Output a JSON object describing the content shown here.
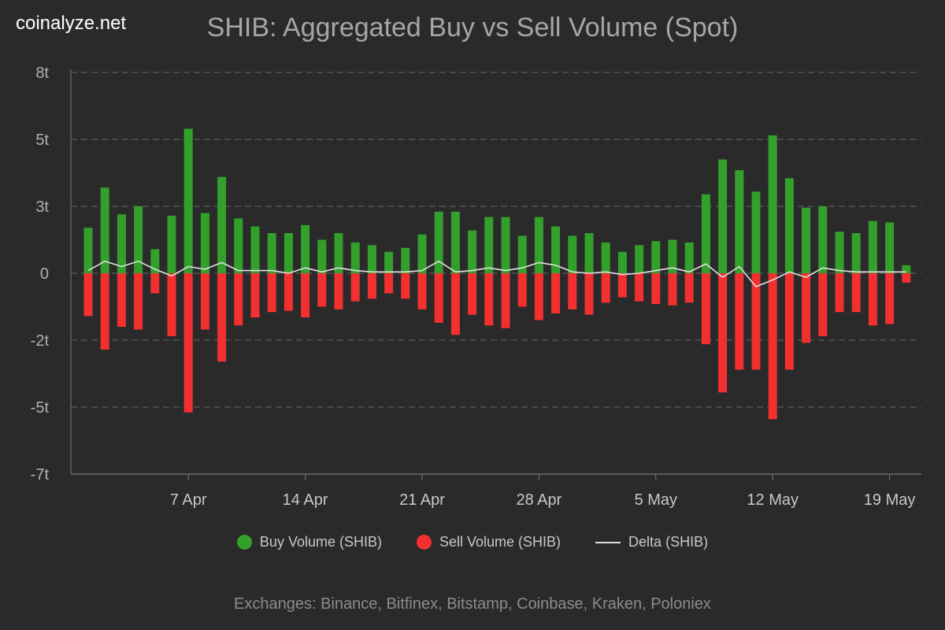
{
  "brand": "coinalyze.net",
  "footer": "Exchanges: Binance, Bitfinex, Bitstamp, Coinbase, Kraken, Poloniex",
  "legend": {
    "buy": "Buy Volume (SHIB)",
    "sell": "Sell Volume (SHIB)",
    "delta": "Delta (SHIB)"
  },
  "colors": {
    "background": "#2a2a2a",
    "buy": "#33a02c",
    "sell": "#f23030",
    "delta": "#e0e0e0",
    "grid": "#5a5a5a"
  },
  "chart_data": {
    "type": "bar",
    "title": "SHIB: Aggregated Buy vs Sell Volume (Spot)",
    "xlabel": "",
    "ylabel": "",
    "grid": true,
    "legend_position": "bottom",
    "y_ticks": [
      "8t",
      "5t",
      "3t",
      "0",
      "-2t",
      "-5t",
      "-7t"
    ],
    "ylim": [
      -7.5,
      7.5
    ],
    "x_ticks": [
      "7 Apr",
      "14 Apr",
      "21 Apr",
      "28 Apr",
      "5 May",
      "12 May",
      "19 May"
    ],
    "categories": [
      "1 Apr",
      "2 Apr",
      "3 Apr",
      "4 Apr",
      "5 Apr",
      "6 Apr",
      "7 Apr",
      "8 Apr",
      "9 Apr",
      "10 Apr",
      "11 Apr",
      "12 Apr",
      "13 Apr",
      "14 Apr",
      "15 Apr",
      "16 Apr",
      "17 Apr",
      "18 Apr",
      "19 Apr",
      "20 Apr",
      "21 Apr",
      "22 Apr",
      "23 Apr",
      "24 Apr",
      "25 Apr",
      "26 Apr",
      "27 Apr",
      "28 Apr",
      "29 Apr",
      "30 Apr",
      "1 May",
      "2 May",
      "3 May",
      "4 May",
      "5 May",
      "6 May",
      "7 May",
      "8 May",
      "9 May",
      "10 May",
      "11 May",
      "12 May",
      "13 May",
      "14 May",
      "15 May",
      "16 May",
      "17 May",
      "18 May",
      "19 May",
      "20 May"
    ],
    "series": [
      {
        "name": "Buy Volume (SHIB)",
        "type": "bar",
        "values": [
          1.7,
          3.2,
          2.2,
          2.5,
          0.9,
          2.15,
          5.4,
          2.25,
          3.6,
          2.05,
          1.75,
          1.5,
          1.5,
          1.8,
          1.25,
          1.5,
          1.15,
          1.05,
          0.8,
          0.95,
          1.45,
          2.3,
          2.3,
          1.6,
          2.1,
          2.1,
          1.4,
          2.1,
          1.75,
          1.4,
          1.5,
          1.15,
          0.8,
          1.05,
          1.2,
          1.25,
          1.15,
          2.95,
          4.25,
          3.85,
          3.05,
          5.15,
          3.55,
          2.45,
          2.5,
          1.55,
          1.5,
          1.95,
          1.9,
          0.3
        ]
      },
      {
        "name": "Sell Volume (SHIB)",
        "type": "bar",
        "values": [
          -1.6,
          -2.85,
          -2.0,
          -2.1,
          -0.75,
          -2.35,
          -5.2,
          -2.1,
          -3.3,
          -1.95,
          -1.65,
          -1.45,
          -1.4,
          -1.65,
          -1.25,
          -1.35,
          -1.05,
          -0.95,
          -0.75,
          -0.95,
          -1.35,
          -1.85,
          -2.3,
          -1.55,
          -1.95,
          -2.05,
          -1.25,
          -1.75,
          -1.5,
          -1.35,
          -1.55,
          -1.1,
          -0.9,
          -1.05,
          -1.15,
          -1.2,
          -1.1,
          -2.65,
          -4.45,
          -3.6,
          -3.6,
          -5.45,
          -3.6,
          -2.6,
          -2.35,
          -1.45,
          -1.45,
          -1.95,
          -1.9,
          -0.35
        ]
      },
      {
        "name": "Delta (SHIB)",
        "type": "line",
        "values": [
          0.1,
          0.45,
          0.25,
          0.45,
          0.15,
          -0.1,
          0.25,
          0.15,
          0.4,
          0.1,
          0.1,
          0.1,
          0.0,
          0.2,
          0.05,
          0.2,
          0.1,
          0.05,
          0.05,
          0.05,
          0.1,
          0.45,
          0.05,
          0.1,
          0.2,
          0.1,
          0.2,
          0.4,
          0.3,
          0.05,
          0.0,
          0.05,
          -0.05,
          0.0,
          0.1,
          0.2,
          0.05,
          0.35,
          -0.15,
          0.25,
          -0.5,
          -0.25,
          0.05,
          -0.15,
          0.2,
          0.1,
          0.05,
          0.05,
          0.05,
          0.05
        ]
      }
    ]
  }
}
